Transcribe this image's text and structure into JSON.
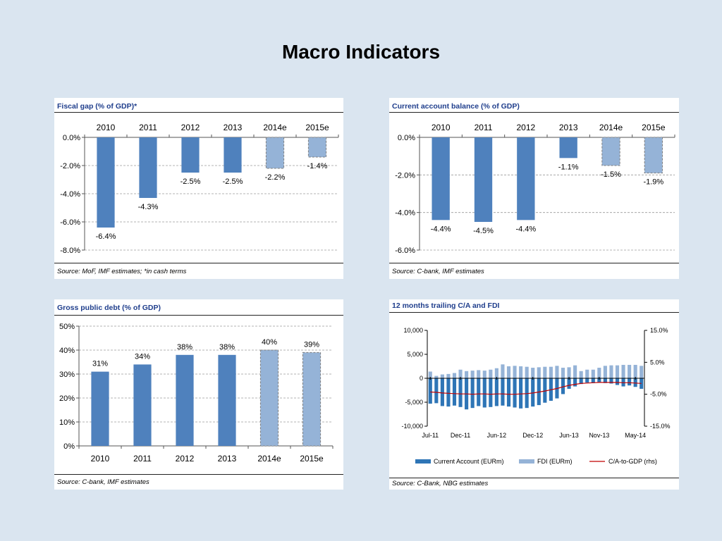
{
  "page": {
    "title": "Macro Indicators"
  },
  "colors": {
    "solid": "#4f81bd",
    "estimate": "#95b3d7",
    "line": "#c00000",
    "title": "#1f3e8c"
  },
  "charts": {
    "fiscal": {
      "title": "Fiscal gap (% of GDP)*",
      "source": "Source: MoF, IMF estimates; *in cash terms",
      "chart_data": {
        "type": "bar",
        "categories": [
          "2010",
          "2011",
          "2012",
          "2013",
          "2014e",
          "2015e"
        ],
        "values": [
          -6.4,
          -4.3,
          -2.5,
          -2.5,
          -2.2,
          -1.4
        ],
        "labels": [
          "-6.4%",
          "-4.3%",
          "-2.5%",
          "-2.5%",
          "-2.2%",
          "-1.4%"
        ],
        "estimate": [
          false,
          false,
          false,
          false,
          true,
          true
        ],
        "ylim": [
          -8,
          0
        ],
        "yticks": [
          0,
          -2,
          -4,
          -6,
          -8
        ],
        "ytick_labels": [
          "0.0%",
          "-2.0%",
          "-4.0%",
          "-6.0%",
          "-8.0%"
        ],
        "category_axis": "top"
      }
    },
    "current_account": {
      "title": "Current account balance (% of GDP)",
      "source": "Source: C-bank, IMF estimates",
      "chart_data": {
        "type": "bar",
        "categories": [
          "2010",
          "2011",
          "2012",
          "2013",
          "2014e",
          "2015e"
        ],
        "values": [
          -4.4,
          -4.5,
          -4.4,
          -1.1,
          -1.5,
          -1.9
        ],
        "labels": [
          "-4.4%",
          "-4.5%",
          "-4.4%",
          "-1.1%",
          "-1.5%",
          "-1.9%"
        ],
        "estimate": [
          false,
          false,
          false,
          false,
          true,
          true
        ],
        "ylim": [
          -6,
          0
        ],
        "yticks": [
          0,
          -2,
          -4,
          -6
        ],
        "ytick_labels": [
          "0.0%",
          "-2.0%",
          "-4.0%",
          "-6.0%"
        ],
        "category_axis": "top"
      }
    },
    "debt": {
      "title": "Gross public debt (% of GDP)",
      "source": "Source: C-bank, IMF estimates",
      "chart_data": {
        "type": "bar",
        "categories": [
          "2010",
          "2011",
          "2012",
          "2013",
          "2014e",
          "2015e"
        ],
        "values": [
          31,
          34,
          38,
          38,
          40,
          39
        ],
        "labels": [
          "31%",
          "34%",
          "38%",
          "38%",
          "40%",
          "39%"
        ],
        "estimate": [
          false,
          false,
          false,
          false,
          true,
          true
        ],
        "ylim": [
          0,
          50
        ],
        "yticks": [
          0,
          10,
          20,
          30,
          40,
          50
        ],
        "ytick_labels": [
          "0%",
          "10%",
          "20%",
          "30%",
          "40%",
          "50%"
        ],
        "category_axis": "bottom"
      }
    },
    "trailing": {
      "title": "12 months trailing C/A and FDI",
      "source": "Source: C-Bank, NBG estimates",
      "chart_data": {
        "type": "bar",
        "x": [
          "Jul-11",
          "Aug-11",
          "Sep-11",
          "Oct-11",
          "Nov-11",
          "Dec-11",
          "Jan-12",
          "Feb-12",
          "Mar-12",
          "Apr-12",
          "May-12",
          "Jun-12",
          "Jul-12",
          "Aug-12",
          "Sep-12",
          "Oct-12",
          "Nov-12",
          "Dec-12",
          "Jan-13",
          "Feb-13",
          "Mar-13",
          "Apr-13",
          "May-13",
          "Jun-13",
          "Jul-13",
          "Aug-13",
          "Sep-13",
          "Oct-13",
          "Nov-13",
          "Dec-13",
          "Jan-14",
          "Feb-14",
          "Mar-14",
          "Apr-14",
          "May-14",
          "Jun-14"
        ],
        "xtick_labels": [
          "Jul-11",
          "Dec-11",
          "Jun-12",
          "Dec-12",
          "Jun-13",
          "Nov-13",
          "May-14"
        ],
        "xtick_index": [
          0,
          5,
          11,
          17,
          23,
          28,
          34
        ],
        "series": [
          {
            "name": "Current Account (EURm)",
            "axis": "left",
            "values": [
              -5300,
              -5200,
              -5800,
              -5900,
              -5700,
              -6000,
              -6500,
              -6200,
              -5800,
              -6100,
              -6000,
              -5800,
              -5700,
              -5900,
              -6100,
              -6300,
              -6200,
              -5900,
              -5600,
              -5100,
              -4700,
              -4200,
              -3300,
              -2200,
              -1700,
              -1200,
              -900,
              -1000,
              -800,
              -1000,
              -1100,
              -1400,
              -1700,
              -1500,
              -1800,
              -2200
            ]
          },
          {
            "name": "FDI (EURm)",
            "axis": "left",
            "values": [
              1400,
              500,
              800,
              900,
              1100,
              1800,
              1500,
              1600,
              1700,
              1600,
              1800,
              2100,
              2900,
              2500,
              2600,
              2500,
              2400,
              2200,
              2300,
              2400,
              2400,
              2600,
              2200,
              2300,
              2700,
              1500,
              1800,
              1800,
              2200,
              2600,
              2700,
              2700,
              2800,
              2800,
              2800,
              2600
            ]
          },
          {
            "name": "C/A-to-GDP (rhs)",
            "axis": "right",
            "values": [
              -4.3,
              -4.4,
              -4.6,
              -4.7,
              -4.8,
              -4.9,
              -4.9,
              -5.0,
              -4.9,
              -4.9,
              -5.0,
              -4.9,
              -4.9,
              -5.0,
              -5.0,
              -4.9,
              -4.8,
              -4.6,
              -4.3,
              -4.0,
              -3.6,
              -3.2,
              -2.7,
              -2.2,
              -1.9,
              -1.6,
              -1.5,
              -1.4,
              -1.3,
              -1.3,
              -1.3,
              -1.3,
              -1.4,
              -1.4,
              -1.5,
              -1.6
            ]
          }
        ],
        "ylim": [
          -10000,
          10000
        ],
        "yticks": [
          10000,
          5000,
          0,
          -5000,
          -10000
        ],
        "ytick_labels": [
          "10,000",
          "5,000",
          "0",
          "-5,000",
          "-10,000"
        ],
        "y2lim": [
          -15,
          15
        ],
        "y2ticks": [
          15,
          5,
          -5,
          -15
        ],
        "y2tick_labels": [
          "15.0%",
          "5.0%",
          "-5.0%",
          "-15.0%"
        ],
        "legend": "bottom"
      }
    }
  }
}
